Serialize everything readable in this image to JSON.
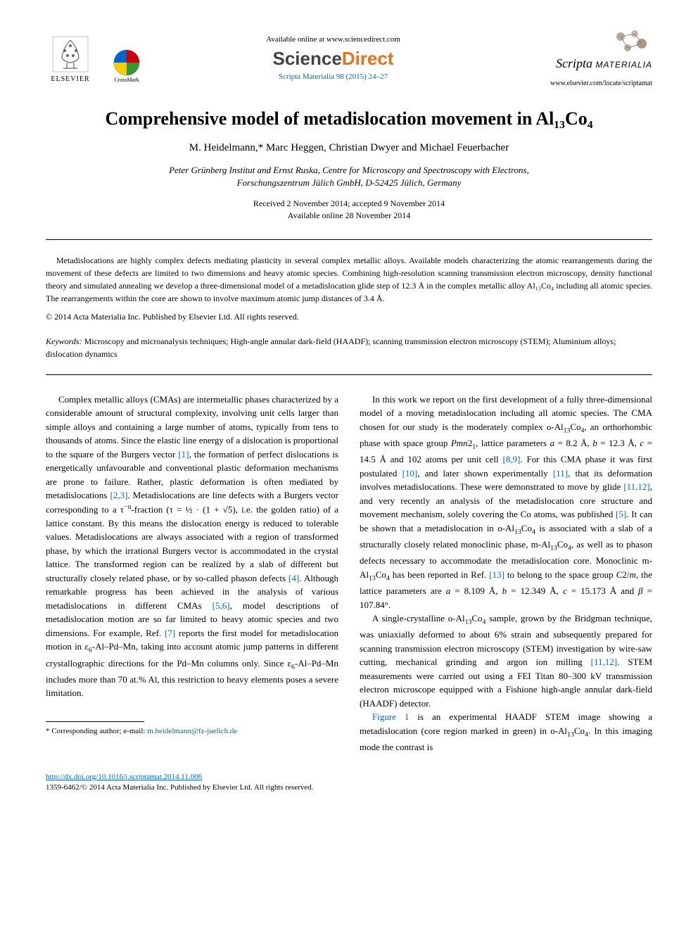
{
  "header": {
    "elsevier": "ELSEVIER",
    "crossmark": "CrossMark",
    "available": "Available online at www.sciencedirect.com",
    "sd_prefix": "Science",
    "sd_suffix": "Direct",
    "journal_ref": "Scripta Materialia 98 (2015) 24–27",
    "journal_title_scripta": "Scripta",
    "journal_title_materialia": "MATERIALIA",
    "journal_url": "www.elsevier.com/locate/scriptamat"
  },
  "title": "Comprehensive model of metadislocation movement in Al₁₃Co₄",
  "authors": "M. Heidelmann,* Marc Heggen, Christian Dwyer and Michael Feuerbacher",
  "affiliation_line1": "Peter Grünberg Institut and Ernst Ruska, Centre for Microscopy and Spectroscopy with Electrons,",
  "affiliation_line2": "Forschungszentrum Jülich GmbH, D-52425 Jülich, Germany",
  "dates_line1": "Received 2 November 2014; accepted 9 November 2014",
  "dates_line2": "Available online 28 November 2014",
  "abstract": "Metadislocations are highly complex defects mediating plasticity in several complex metallic alloys. Available models characterizing the atomic rearrangements during the movement of these defects are limited to two dimensions and heavy atomic species. Combining high-resolution scanning transmission electron microscopy, density functional theory and simulated annealing we develop a three-dimensional model of a metadislocation glide step of 12.3 Å in the complex metallic alloy Al₁₃Co₄ including all atomic species. The rearrangements within the core are shown to involve maximum atomic jump distances of 3.4 Å.",
  "copyright": "© 2014 Acta Materialia Inc. Published by Elsevier Ltd. All rights reserved.",
  "keywords_label": "Keywords:",
  "keywords_text": " Microscopy and microanalysis techniques; High-angle annular dark-field (HAADF); scanning transmission electron microscopy (STEM); Aluminium alloys; dislocation dynamics",
  "body": {
    "col1_html": "Complex metallic alloys (CMAs) are intermetallic phases characterized by a considerable amount of structural complexity, involving unit cells larger than simple alloys and containing a large number of atoms, typically from tens to thousands of atoms. Since the elastic line energy of a dislocation is proportional to the square of the Burgers vector <a class='link' href='#'>[1]</a>, the formation of perfect dislocations is energetically unfavourable and conventional plastic deformation mechanisms are prone to failure. Rather, plastic deformation is often mediated by metadislocations <a class='link' href='#'>[2,3]</a>. Metadislocations are line defects with a Burgers vector corresponding to a τ<span class='sup'>−n</span>-fraction (τ = ½ · (1 + √5), i.e. the golden ratio) of a lattice constant. By this means the dislocation energy is reduced to tolerable values. Metadislocations are always associated with a region of transformed phase, by which the irrational Burgers vector is accommodated in the crystal lattice. The transformed region can be realized by a slab of different but structurally closely related phase, or by so-called phason defects <a class='link' href='#'>[4]</a>. Although remarkable progress has been achieved in the analysis of various metadislocations in different CMAs <a class='link' href='#'>[5,6]</a>, model descriptions of metadislocation motion are so far limited to heavy atomic species and two dimensions. For example, Ref. <a class='link' href='#'>[7]</a> reports the first model for metadislocation motion in ε<span class='sub'>6</span>-Al–Pd–Mn, taking into account atomic jump patterns in different crystallographic directions for the Pd–Mn columns only. Since ε<span class='sub'>6</span>-Al–Pd–Mn includes more than 70 at.% Al, this restriction to heavy elements poses a severe limitation.",
    "col2_p1_html": "In this work we report on the first development of a fully three-dimensional model of a moving metadislocation including all atomic species. The CMA chosen for our study is the moderately complex o-Al<span class='sub'>13</span>Co<span class='sub'>4</span>, an orthorhombic phase with space group <i>Pmn</i>2<span class='sub'>1</span>, lattice parameters <i>a</i> = 8.2 Å, <i>b</i> = 12.3 Å, <i>c</i> = 14.5 Å and 102 atoms per unit cell <a class='link' href='#'>[8,9]</a>. For this CMA phase it was first postulated <a class='link' href='#'>[10]</a>, and later shown experimentally <a class='link' href='#'>[11]</a>, that its deformation involves metadislocations. These were demonstrated to move by glide <a class='link' href='#'>[11,12]</a>, and very recently an analysis of the metadislocation core structure and movement mechanism, solely covering the Co atoms, was published <a class='link' href='#'>[5]</a>. It can be shown that a metadislocation in o-Al<span class='sub'>13</span>Co<span class='sub'>4</span> is associated with a slab of a structurally closely related monoclinic phase, m-Al<span class='sub'>13</span>Co<span class='sub'>4</span>, as well as to phason defects necessary to accommodate the metadislocation core. Monoclinic m-Al<span class='sub'>13</span>Co<span class='sub'>4</span> has been reported in Ref. <a class='link' href='#'>[13]</a> to belong to the space group <i>C</i>2/<i>m</i>, the lattice parameters are <i>a</i> = 8.109 Å, <i>b</i> = 12.349 Å, <i>c</i> = 15.173 Å and <i>β</i> = 107.84°.",
    "col2_p2_html": "A single-crystalline o-Al<span class='sub'>13</span>Co<span class='sub'>4</span> sample, grown by the Bridgman technique, was uniaxially deformed to about 6% strain and subsequently prepared for scanning transmission electron microscopy (STEM) investigation by wire-saw cutting, mechanical grinding and argon ion milling <a class='link' href='#'>[11,12]</a>. STEM measurements were carried out using a FEI Titan 80–300 kV transmission electron microscope equipped with a Fishione high-angle annular dark-field (HAADF) detector.",
    "col2_p3_html": "<a class='link' href='#'>Figure 1</a> is an experimental HAADF STEM image showing a metadislocation (core region marked in green) in o-Al<span class='sub'>13</span>Co<span class='sub'>4</span>. In this imaging mode the contrast is"
  },
  "footnote_label": "* Corresponding author; e-mail: ",
  "footnote_email": "m.heidelmann@fz-juelich.de",
  "footer": {
    "doi": "http://dx.doi.org/10.1016/j.scriptamat.2014.11.006",
    "issn": "1359-6462/© 2014 Acta Materialia Inc. Published by Elsevier Ltd. All rights reserved."
  },
  "colors": {
    "link": "#0066cc",
    "orange": "#e9711c"
  }
}
